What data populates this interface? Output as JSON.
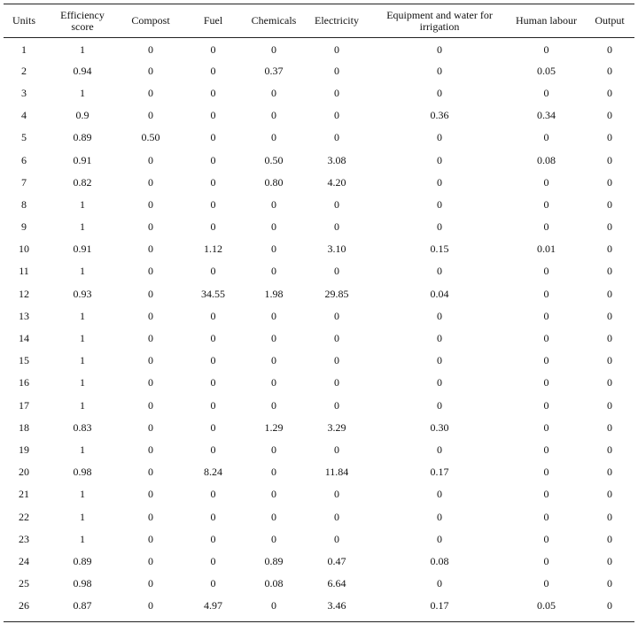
{
  "table": {
    "headers": [
      "Units",
      "Efficiency score",
      "Compost",
      "Fuel",
      "Chemicals",
      "Electricity",
      "Equipment and water for irrigation",
      "Human labour",
      "Output"
    ],
    "rows": [
      [
        "1",
        "1",
        "0",
        "0",
        "0",
        "0",
        "0",
        "0",
        "0"
      ],
      [
        "2",
        "0.94",
        "0",
        "0",
        "0.37",
        "0",
        "0",
        "0.05",
        "0"
      ],
      [
        "3",
        "1",
        "0",
        "0",
        "0",
        "0",
        "0",
        "0",
        "0"
      ],
      [
        "4",
        "0.9",
        "0",
        "0",
        "0",
        "0",
        "0.36",
        "0.34",
        "0"
      ],
      [
        "5",
        "0.89",
        "0.50",
        "0",
        "0",
        "0",
        "0",
        "0",
        "0"
      ],
      [
        "6",
        "0.91",
        "0",
        "0",
        "0.50",
        "3.08",
        "0",
        "0.08",
        "0"
      ],
      [
        "7",
        "0.82",
        "0",
        "0",
        "0.80",
        "4.20",
        "0",
        "0",
        "0"
      ],
      [
        "8",
        "1",
        "0",
        "0",
        "0",
        "0",
        "0",
        "0",
        "0"
      ],
      [
        "9",
        "1",
        "0",
        "0",
        "0",
        "0",
        "0",
        "0",
        "0"
      ],
      [
        "10",
        "0.91",
        "0",
        "1.12",
        "0",
        "3.10",
        "0.15",
        "0.01",
        "0"
      ],
      [
        "11",
        "1",
        "0",
        "0",
        "0",
        "0",
        "0",
        "0",
        "0"
      ],
      [
        "12",
        "0.93",
        "0",
        "34.55",
        "1.98",
        "29.85",
        "0.04",
        "0",
        "0"
      ],
      [
        "13",
        "1",
        "0",
        "0",
        "0",
        "0",
        "0",
        "0",
        "0"
      ],
      [
        "14",
        "1",
        "0",
        "0",
        "0",
        "0",
        "0",
        "0",
        "0"
      ],
      [
        "15",
        "1",
        "0",
        "0",
        "0",
        "0",
        "0",
        "0",
        "0"
      ],
      [
        "16",
        "1",
        "0",
        "0",
        "0",
        "0",
        "0",
        "0",
        "0"
      ],
      [
        "17",
        "1",
        "0",
        "0",
        "0",
        "0",
        "0",
        "0",
        "0"
      ],
      [
        "18",
        "0.83",
        "0",
        "0",
        "1.29",
        "3.29",
        "0.30",
        "0",
        "0"
      ],
      [
        "19",
        "1",
        "0",
        "0",
        "0",
        "0",
        "0",
        "0",
        "0"
      ],
      [
        "20",
        "0.98",
        "0",
        "8.24",
        "0",
        "11.84",
        "0.17",
        "0",
        "0"
      ],
      [
        "21",
        "1",
        "0",
        "0",
        "0",
        "0",
        "0",
        "0",
        "0"
      ],
      [
        "22",
        "1",
        "0",
        "0",
        "0",
        "0",
        "0",
        "0",
        "0"
      ],
      [
        "23",
        "1",
        "0",
        "0",
        "0",
        "0",
        "0",
        "0",
        "0"
      ],
      [
        "24",
        "0.89",
        "0",
        "0",
        "0.89",
        "0.47",
        "0.08",
        "0",
        "0"
      ],
      [
        "25",
        "0.98",
        "0",
        "0",
        "0.08",
        "6.64",
        "0",
        "0",
        "0"
      ],
      [
        "26",
        "0.87",
        "0",
        "4.97",
        "0",
        "3.46",
        "0.17",
        "0.05",
        "0"
      ]
    ]
  }
}
